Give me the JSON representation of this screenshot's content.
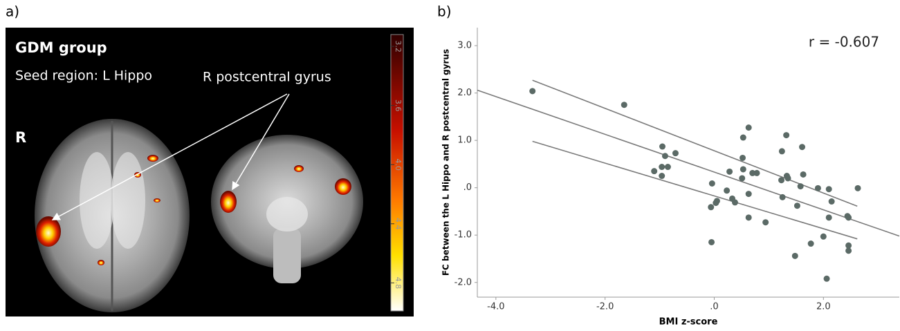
{
  "panel_a": {
    "label": "a)",
    "title": "GDM group",
    "seed": "Seed region: L Hippo",
    "region_label": "R postcentral gyrus",
    "side": "R",
    "colorbar": {
      "clim": [
        3.12,
        4.99
      ],
      "ticks": [
        3.2,
        3.6,
        {
          "value": 4,
          "label": "4.0"
        },
        4.4,
        4.8
      ]
    }
  },
  "chart_data": {
    "type": "scatter",
    "panel_label": "b)",
    "x_label": "BMI z-score",
    "y_label": "FC between the L Hippo and R postcentral gyrus",
    "annotation": "r = -0.607",
    "color": "#5b6a66",
    "line_color": "#7a7a7a",
    "x": [
      -3.33,
      -1.65,
      -0.95,
      -0.71,
      -0.9,
      -0.96,
      -0.85,
      -1.1,
      -0.96,
      -0.04,
      0.05,
      -0.06,
      0.03,
      -0.05,
      0.28,
      0.23,
      0.33,
      0.38,
      0.51,
      0.52,
      0.63,
      0.53,
      0.63,
      0.7,
      0.78,
      0.63,
      0.94,
      1.24,
      1.32,
      1.33,
      1.35,
      1.23,
      1.25,
      1.58,
      1.61,
      1.63,
      1.52,
      1.48,
      1.77,
      1.9,
      2.0,
      2.06,
      2.1,
      2.15,
      2.1,
      2.44,
      2.46,
      2.46,
      2.46,
      2.63,
      0.53
    ],
    "values": [
      2.04,
      1.75,
      0.87,
      0.73,
      0.67,
      0.44,
      0.44,
      0.35,
      0.25,
      0.09,
      -0.28,
      -0.41,
      -0.32,
      -1.15,
      0.34,
      -0.06,
      -0.23,
      -0.31,
      0.2,
      0.63,
      1.27,
      0.39,
      -0.13,
      0.31,
      0.31,
      -0.63,
      -0.73,
      0.77,
      1.11,
      0.25,
      0.2,
      0.16,
      -0.2,
      0.03,
      0.86,
      0.28,
      -0.38,
      -1.44,
      -1.18,
      -0.01,
      -1.03,
      -1.92,
      -0.03,
      -0.29,
      -0.63,
      -0.6,
      -0.63,
      -1.22,
      -1.33,
      -0.01,
      1.06
    ],
    "lines": [
      {
        "x": [
          -4.34,
          3.39
        ],
        "values": [
          2.06,
          -1.02
        ]
      },
      {
        "x": [
          -3.33,
          2.62
        ],
        "values": [
          2.27,
          -0.39
        ]
      },
      {
        "x": [
          -3.33,
          2.62
        ],
        "values": [
          0.98,
          -1.08
        ]
      }
    ],
    "xlim": [
      -4.34,
      3.39
    ],
    "ylim": [
      -2.31,
      3.38
    ],
    "xticks": [
      {
        "value": -4,
        "label": "-4.0"
      },
      {
        "value": -2,
        "label": "-2.0"
      },
      {
        "value": 0,
        "label": ".0"
      },
      {
        "value": 2,
        "label": "2.0"
      }
    ],
    "yticks": [
      {
        "value": 3,
        "label": "3.0"
      },
      {
        "value": 2,
        "label": "2.0"
      },
      {
        "value": 1,
        "label": "1.0"
      },
      {
        "value": 0,
        "label": ".0"
      },
      {
        "value": -1,
        "label": "-1.0"
      },
      {
        "value": -2,
        "label": "-2.0"
      }
    ]
  }
}
